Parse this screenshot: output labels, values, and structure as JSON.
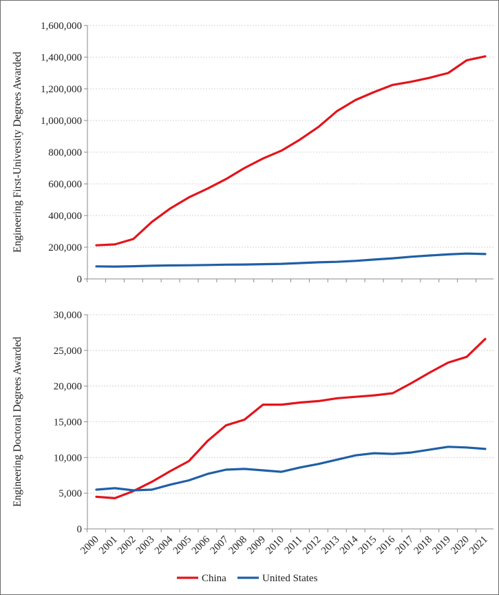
{
  "chart_data": [
    {
      "type": "line",
      "ylabel": "Engineering First-University Degrees Awarded",
      "ylim": [
        0,
        1600000
      ],
      "yticks": [
        0,
        200000,
        400000,
        600000,
        800000,
        1000000,
        1200000,
        1400000,
        1600000
      ],
      "ytick_labels": [
        "0",
        "200,000",
        "400,000",
        "600,000",
        "800,000",
        "1,000,000",
        "1,200,000",
        "1,400,000",
        "1,600,000"
      ],
      "grid": true,
      "categories": [
        "2000",
        "2001",
        "2002",
        "2003",
        "2004",
        "2005",
        "2006",
        "2007",
        "2008",
        "2009",
        "2010",
        "2011",
        "2012",
        "2013",
        "2014",
        "2015",
        "2016",
        "2017",
        "2018",
        "2019",
        "2020",
        "2021"
      ],
      "series": [
        {
          "name": "China",
          "color": "#e3141b",
          "values": [
            212000,
            218000,
            252000,
            360000,
            445000,
            515000,
            570000,
            630000,
            700000,
            760000,
            810000,
            880000,
            960000,
            1060000,
            1130000,
            1180000,
            1225000,
            1245000,
            1270000,
            1300000,
            1380000,
            1405000
          ]
        },
        {
          "name": "United States",
          "color": "#1f5fa6",
          "values": [
            79000,
            78000,
            80000,
            83000,
            85000,
            86000,
            88000,
            90000,
            91000,
            93000,
            95000,
            100000,
            105000,
            108000,
            114000,
            122000,
            130000,
            140000,
            148000,
            155000,
            160000,
            157000
          ]
        }
      ]
    },
    {
      "type": "line",
      "ylabel": "Engineering Doctoral Degrees Awarded",
      "ylim": [
        0,
        30000
      ],
      "yticks": [
        0,
        5000,
        10000,
        15000,
        20000,
        25000,
        30000
      ],
      "ytick_labels": [
        "0",
        "5,000",
        "10,000",
        "15,000",
        "20,000",
        "25,000",
        "30,000"
      ],
      "grid": true,
      "categories": [
        "2000",
        "2001",
        "2002",
        "2003",
        "2004",
        "2005",
        "2006",
        "2007",
        "2008",
        "2009",
        "2010",
        "2011",
        "2012",
        "2013",
        "2014",
        "2015",
        "2016",
        "2017",
        "2018",
        "2019",
        "2020",
        "2021"
      ],
      "series": [
        {
          "name": "China",
          "color": "#e3141b",
          "values": [
            4500,
            4300,
            5300,
            6600,
            8100,
            9500,
            12300,
            14500,
            15300,
            17400,
            17400,
            17700,
            17900,
            18300,
            18500,
            18700,
            19000,
            20400,
            21900,
            23300,
            24100,
            26600
          ]
        },
        {
          "name": "United States",
          "color": "#1f5fa6",
          "values": [
            5500,
            5700,
            5400,
            5500,
            6200,
            6800,
            7700,
            8300,
            8400,
            8200,
            8000,
            8600,
            9100,
            9700,
            10300,
            10600,
            10500,
            10700,
            11100,
            11500,
            11400,
            11200
          ]
        }
      ]
    }
  ],
  "legend": {
    "position": "bottom-center",
    "items": [
      {
        "label": "China",
        "color": "#e3141b"
      },
      {
        "label": "United States",
        "color": "#1f5fa6"
      }
    ]
  }
}
